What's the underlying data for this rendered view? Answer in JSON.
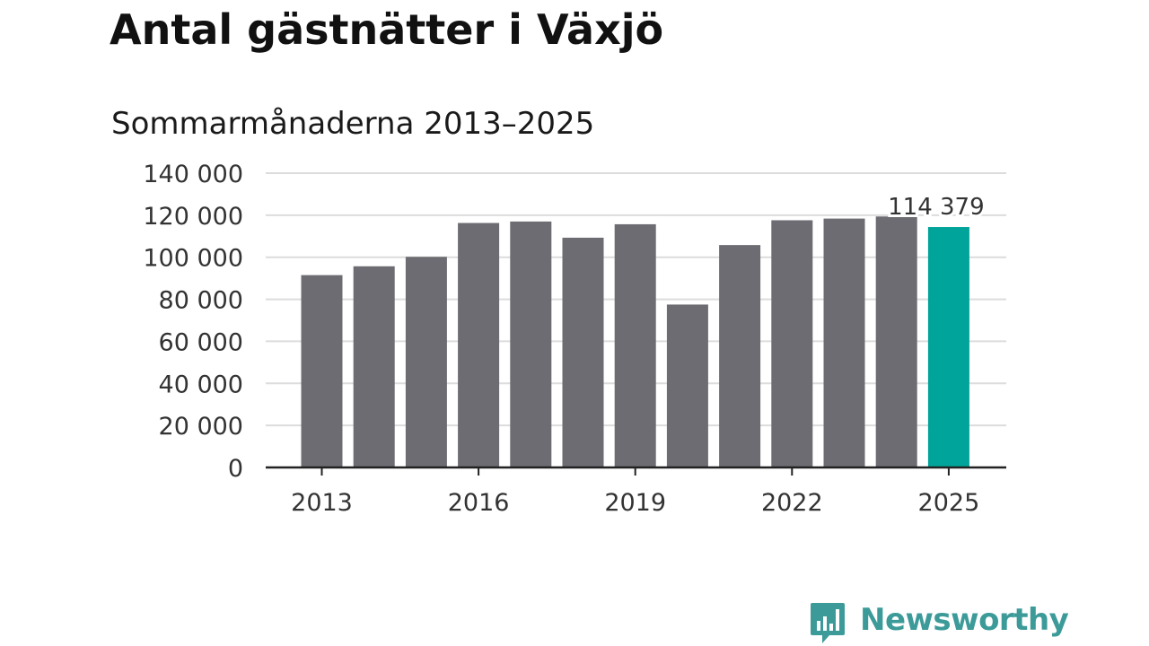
{
  "colors": {
    "bar_default": "#6d6c72",
    "bar_highlight": "#00a49a",
    "gridline": "#dcdcdc",
    "axis": "#222222",
    "brand": "#3c9b99"
  },
  "logo": {
    "icon": "bar-chart-speech-bubble-icon",
    "text": "Newsworthy"
  },
  "chart_data": {
    "type": "bar",
    "title": "Antal gästnätter i Växjö",
    "subtitle": "Sommarmånaderna 2013–2025",
    "xlabel": "",
    "ylabel": "",
    "categories": [
      "2013",
      "2014",
      "2015",
      "2016",
      "2017",
      "2018",
      "2019",
      "2020",
      "2021",
      "2022",
      "2023",
      "2024",
      "2025"
    ],
    "values": [
      91500,
      95700,
      100200,
      116300,
      117000,
      109300,
      115700,
      77500,
      105800,
      117600,
      118400,
      119400,
      114379
    ],
    "highlight_index": 12,
    "data_labels": [
      {
        "index": 12,
        "text": "114 379"
      }
    ],
    "x_tick_labels": [
      "2013",
      "2016",
      "2019",
      "2022",
      "2025"
    ],
    "y_ticks": [
      0,
      20000,
      40000,
      60000,
      80000,
      100000,
      120000,
      140000
    ],
    "y_tick_labels": [
      "0",
      "20 000",
      "40 000",
      "60 000",
      "80 000",
      "100 000",
      "120 000",
      "140 000"
    ],
    "ylim": [
      0,
      140000
    ],
    "grid": true,
    "legend": "none"
  }
}
